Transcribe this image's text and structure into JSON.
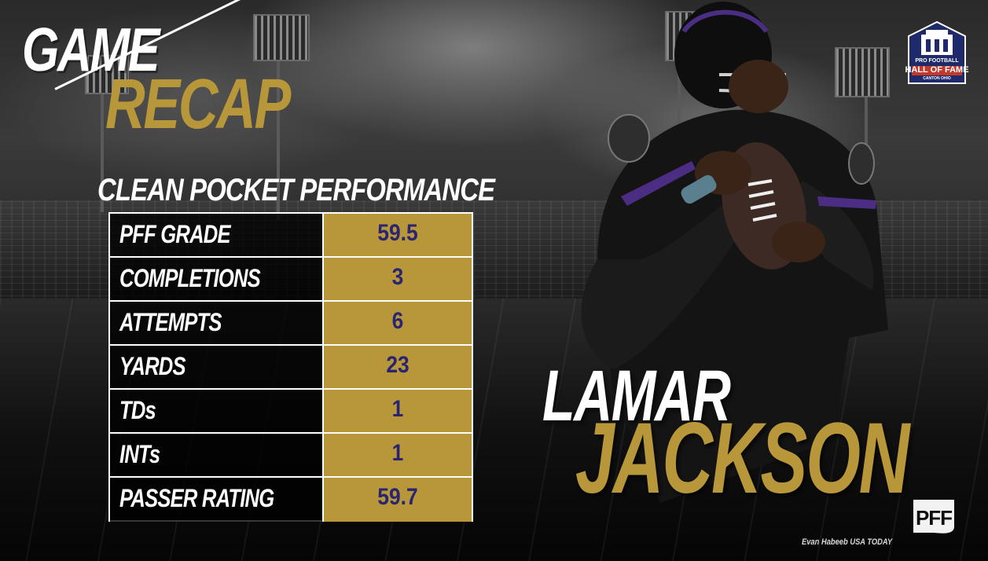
{
  "title": {
    "line1": "GAME",
    "line2": "RECAP"
  },
  "section_title": "CLEAN POCKET PERFORMANCE",
  "stats": [
    {
      "label": "PFF GRADE",
      "value": "59.5"
    },
    {
      "label": "COMPLETIONS",
      "value": "3"
    },
    {
      "label": "ATTEMPTS",
      "value": "6"
    },
    {
      "label": "YARDS",
      "value": "23"
    },
    {
      "label": "TDs",
      "value": "1"
    },
    {
      "label": "INTs",
      "value": "1"
    },
    {
      "label": "PASSER RATING",
      "value": "59.7"
    }
  ],
  "player": {
    "first_name": "LAMAR",
    "last_name": "JACKSON"
  },
  "hof_logo": {
    "line1": "PRO FOOTBALL",
    "line2": "HALL OF FAME",
    "line3": "CANTON OHIO"
  },
  "pff_logo": {
    "text": "PFF"
  },
  "photo_credit": "Evan Habeeb USA TODAY",
  "colors": {
    "gold": "#b8973a",
    "navy_text": "#2a2570",
    "white": "#ffffff",
    "background": "#0d0d0d",
    "purple": "#4b2e83"
  }
}
